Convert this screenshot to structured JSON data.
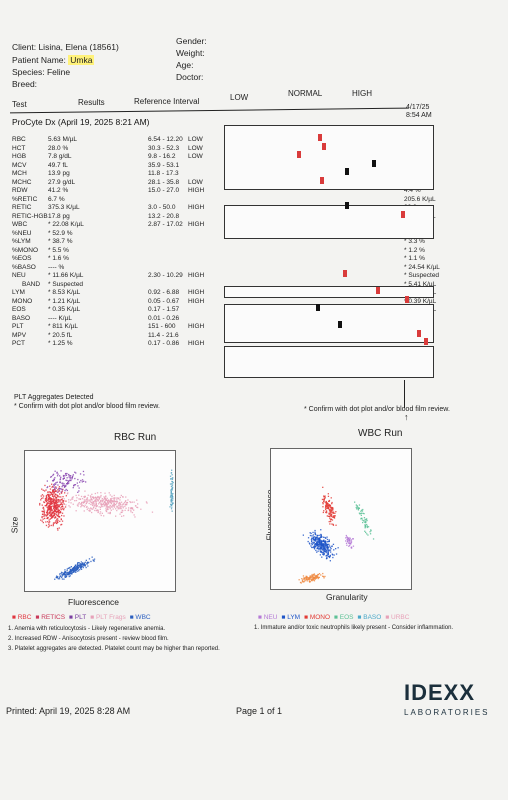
{
  "header": {
    "client": "Client: Lisina, Elena (18561)",
    "patient_label": "Patient Name:",
    "patient_name": "Umka",
    "species": "Species: Feline",
    "breed": "Breed:",
    "gender": "Gender:",
    "weight": "Weight:",
    "age": "Age:",
    "doctor": "Doctor:"
  },
  "columns": {
    "test": "Test",
    "results": "Results",
    "reference": "Reference Interval",
    "low": "LOW",
    "normal": "NORMAL",
    "high": "HIGH",
    "date": "4/17/25",
    "time": "8:54 AM"
  },
  "run_title": "ProCyte Dx (April 19, 2025 8:21 AM)",
  "rows": [
    {
      "name": "RBC",
      "result": "5.63 M/µL",
      "ref": "6.54 - 12.20",
      "flag": "LOW",
      "prev": "4.64 M/µL",
      "marker": 0.45
    },
    {
      "name": "HCT",
      "result": "28.0 %",
      "ref": "30.3 - 52.3",
      "flag": "LOW",
      "prev": "21.3 %",
      "marker": 0.47
    },
    {
      "name": "HGB",
      "result": "7.8 g/dL",
      "ref": "9.8 - 16.2",
      "flag": "LOW",
      "prev": "6.4 g/dL",
      "marker": 0.35
    },
    {
      "name": "MCV",
      "result": "49.7 fL",
      "ref": "35.9 - 53.1",
      "flag": "",
      "prev": "45.9 fL",
      "marker": 0.71
    },
    {
      "name": "MCH",
      "result": "13.9 pg",
      "ref": "11.8 - 17.3",
      "flag": "",
      "prev": "13.8 pg",
      "marker": 0.58
    },
    {
      "name": "MCHC",
      "result": "27.9 g/dL",
      "ref": "28.1 - 35.8",
      "flag": "LOW",
      "prev": "30.7 %",
      "marker": 0.46
    },
    {
      "name": "RDW",
      "result": "41.2 %",
      "ref": "15.0 - 27.0",
      "flag": "HIGH",
      "prev": "4.4 %",
      "marker": -1
    },
    {
      "name": "%RETIC",
      "result": "6.7 %",
      "ref": "",
      "flag": "",
      "prev": "205.6 K/µL",
      "marker": -1
    },
    {
      "name": "RETIC",
      "result": "375.3 K/µL",
      "ref": "3.0 - 50.0",
      "flag": "HIGH",
      "prev": "22.2 pg",
      "marker": 0.58
    },
    {
      "name": "RETIC-HGB",
      "result": "17.8 pg",
      "ref": "13.2 - 20.8",
      "flag": "",
      "prev": "32.80 K/µL",
      "marker": 0.85
    },
    {
      "name": "WBC",
      "result": "* 22.08 K/µL",
      "ref": "2.87 - 17.02",
      "flag": "HIGH",
      "prev": "* 74.9 %",
      "marker": -1
    },
    {
      "name": "%NEU",
      "result": "* 52.9 %",
      "ref": "",
      "flag": "",
      "prev": "* 19.5 %",
      "marker": -1
    },
    {
      "name": "%LYM",
      "result": "* 38.7 %",
      "ref": "",
      "flag": "",
      "prev": "* 3.3 %",
      "marker": -1
    },
    {
      "name": "%MONO",
      "result": "* 5.5 %",
      "ref": "",
      "flag": "",
      "prev": "* 1.2 %",
      "marker": -1
    },
    {
      "name": "%EOS",
      "result": "* 1.6 %",
      "ref": "",
      "flag": "",
      "prev": "* 1.1 %",
      "marker": -1
    },
    {
      "name": "%BASO",
      "result": "---- %",
      "ref": "",
      "flag": "",
      "prev": "* 24.54 K/µL",
      "marker": -1
    },
    {
      "name": "NEU",
      "result": "* 11.66 K/µL",
      "ref": "2.30 - 10.29",
      "flag": "HIGH",
      "prev": "* Suspected",
      "marker": 0.57
    },
    {
      "name": "BAND",
      "result": "* Suspected",
      "ref": "",
      "flag": "",
      "prev": "* 5.41 K/µL",
      "marker": -1
    },
    {
      "name": "LYM",
      "result": "* 8.53 K/µL",
      "ref": "0.92 - 6.88",
      "flag": "HIGH",
      "prev": "* 1.09 K/µL",
      "marker": 0.73
    },
    {
      "name": "MONO",
      "result": "* 1.21 K/µL",
      "ref": "0.05 - 0.67",
      "flag": "HIGH",
      "prev": "* 0.39 K/µL",
      "marker": 0.87
    },
    {
      "name": "EOS",
      "result": "* 0.35 K/µL",
      "ref": "0.17 - 1.57",
      "flag": "",
      "prev": "* 0.37 K/µL",
      "marker": 0.44
    },
    {
      "name": "BASO",
      "result": "---- K/µL",
      "ref": "0.01 - 0.26",
      "flag": "",
      "prev": "432 K/µL",
      "marker": -1
    },
    {
      "name": "PLT",
      "result": "* 811 K/µL",
      "ref": "151 - 600",
      "flag": "HIGH",
      "prev": "19.5 fL",
      "marker": 0.55
    },
    {
      "name": "MPV",
      "result": "* 20.5 fL",
      "ref": "11.4 - 21.6",
      "flag": "",
      "prev": "0.84 %",
      "marker": 0.93
    },
    {
      "name": "PCT",
      "result": "* 1.25 %",
      "ref": "0.17 - 0.86",
      "flag": "HIGH",
      "prev": "",
      "marker": 0.96
    }
  ],
  "notes": {
    "plt_aggregates": "PLT Aggregates Detected",
    "confirm_left": "* Confirm with dot plot and/or blood film review.",
    "confirm_right": "* Confirm with dot plot and/or blood film review."
  },
  "rbc_plot": {
    "title": "RBC Run",
    "ylabel": "Size",
    "xlabel": "Fluorescence",
    "legend": [
      "■ RBC",
      "■ RETICS",
      "■ PLT",
      "■ PLT Frags",
      "■ WBC"
    ]
  },
  "wbc_plot": {
    "title": "WBC Run",
    "ylabel": "Fluorescence",
    "xlabel": "Granularity",
    "legend": [
      "■ NEU",
      "■ LYM",
      "■ MONO",
      "■ EOS",
      "■ BASO",
      "■ URBC"
    ]
  },
  "comments_left": [
    "1. Anemia with reticulocytosis - Likely regenerative anemia.",
    "2. Increased RDW - Anisocytosis present - review blood film.",
    "3. Platelet aggregates are detected. Platelet count may be higher than reported."
  ],
  "comments_right": [
    "1. Immature and/or toxic neutrophils likely present - Consider inflammation."
  ],
  "footer": {
    "printed": "Printed: April 19, 2025 8:28 AM",
    "page": "Page 1 of 1",
    "logo": "IDEXX",
    "logo_sub": "LABORATORIES"
  },
  "colors": {
    "marker_red": "#d93b3b",
    "marker_black": "#111111",
    "rbc_red": "#e0353f",
    "rbc_pink": "#e7a1b8",
    "rbc_blue": "#2b5fc0",
    "wbc_blue": "#1f55c8",
    "wbc_red": "#e23a34",
    "wbc_orange": "#ee8a42",
    "wbc_green": "#5cc196",
    "wbc_violet": "#b57ad6"
  }
}
